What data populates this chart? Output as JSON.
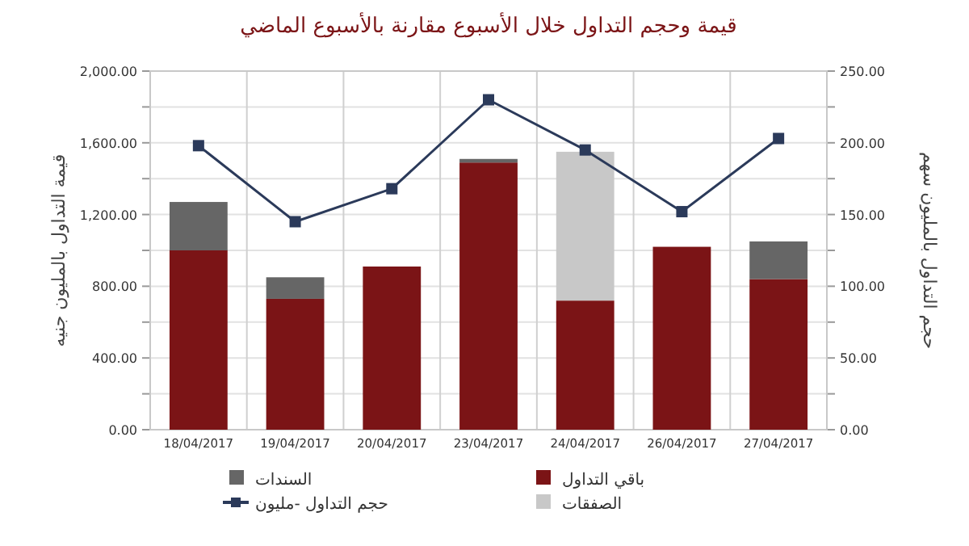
{
  "chart_data": {
    "type": "bar",
    "stacked": true,
    "title": "قيمة وحجم التداول خلال الأسبوع مقارنة بالأسبوع الماضي",
    "ylabel": "قيمة التداول بالمليون جنيه",
    "y2label": "حجم التداول بالمليون سهم",
    "categories": [
      "18/04/2017",
      "19/04/2017",
      "20/04/2017",
      "23/04/2017",
      "24/04/2017",
      "26/04/2017",
      "27/04/2017"
    ],
    "series": [
      {
        "name": "باقي التداول",
        "color": "#7b1416",
        "values": [
          1000,
          730,
          910,
          1490,
          720,
          1020,
          840
        ]
      },
      {
        "name": "السندات",
        "color": "#666666",
        "values": [
          270,
          120,
          null,
          20,
          null,
          null,
          210
        ]
      },
      {
        "name": "الصفقات",
        "color": "#c8c8c8",
        "values": [
          null,
          null,
          null,
          null,
          830,
          null,
          null
        ]
      },
      {
        "name": "حجم التداول -مليون",
        "color": "#2b3a5a",
        "type": "line",
        "axis": "y2",
        "marker": "square",
        "values": [
          198,
          145,
          168,
          230,
          195,
          152,
          203
        ]
      }
    ],
    "ylim": [
      0,
      2000
    ],
    "yticks": [
      {
        "value": 0,
        "label": "0.00"
      },
      {
        "value": 200,
        "label": null
      },
      {
        "value": 400,
        "label": "400.00"
      },
      {
        "value": 600,
        "label": null
      },
      {
        "value": 800,
        "label": "800.00"
      },
      {
        "value": 1000,
        "label": null
      },
      {
        "value": 1200,
        "label": "1,200.00"
      },
      {
        "value": 1400,
        "label": null
      },
      {
        "value": 1600,
        "label": "1,600.00"
      },
      {
        "value": 1800,
        "label": null
      },
      {
        "value": 2000,
        "label": "2,000.00"
      }
    ],
    "y2lim": [
      0,
      250
    ],
    "y2ticks": [
      {
        "value": 0,
        "label": "0.00"
      },
      {
        "value": 25,
        "label": null
      },
      {
        "value": 50,
        "label": "50.00"
      },
      {
        "value": 75,
        "label": null
      },
      {
        "value": 100,
        "label": "100.00"
      },
      {
        "value": 125,
        "label": null
      },
      {
        "value": 150,
        "label": "150.00"
      },
      {
        "value": 175,
        "label": null
      },
      {
        "value": 200,
        "label": "200.00"
      },
      {
        "value": 225,
        "label": null
      },
      {
        "value": 250,
        "label": "250.00"
      }
    ],
    "grid": true,
    "legend": "bottom"
  }
}
